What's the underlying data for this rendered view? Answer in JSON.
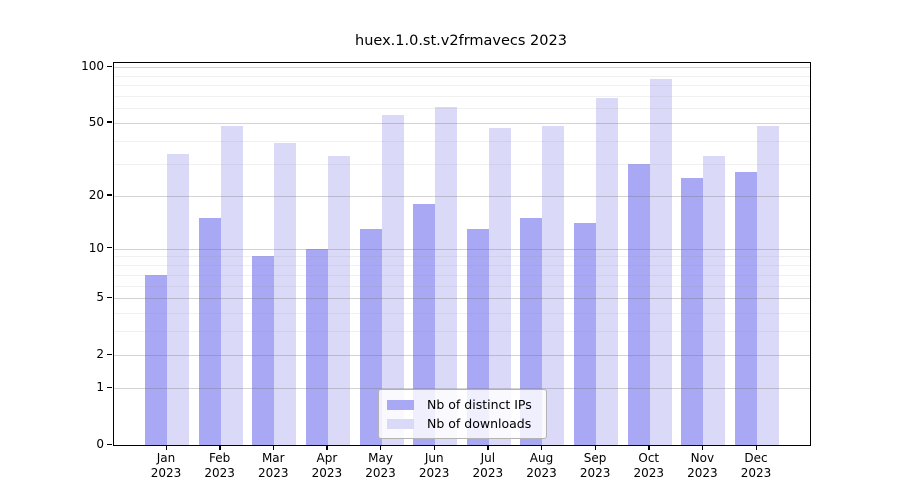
{
  "title": "huex.1.0.st.v2frmavecs 2023",
  "chart_data": {
    "type": "bar",
    "title": "huex.1.0.st.v2frmavecs 2023",
    "categories": [
      "Jan",
      "Feb",
      "Mar",
      "Apr",
      "May",
      "Jun",
      "Jul",
      "Aug",
      "Sep",
      "Oct",
      "Nov",
      "Dec"
    ],
    "year": "2023",
    "series": [
      {
        "name": "Nb of distinct IPs",
        "color": "#a8a8f4",
        "values": [
          7,
          15,
          9,
          10,
          13,
          18,
          13,
          15,
          14,
          30,
          25,
          27
        ]
      },
      {
        "name": "Nb of downloads",
        "color": "#dadaf8",
        "values": [
          34,
          48,
          39,
          33,
          55,
          61,
          47,
          48,
          68,
          86,
          33,
          48
        ]
      }
    ],
    "yscale": "log10(value+1)",
    "ylim": [
      0,
      100
    ],
    "yticks": [
      0,
      1,
      2,
      5,
      10,
      20,
      50,
      100
    ],
    "yticks_minor": [
      3,
      4,
      6,
      7,
      8,
      9,
      30,
      40,
      60,
      70,
      80,
      90
    ],
    "grid": "horizontal",
    "legend_position": "inside-bottom-center",
    "frame_color": "#000000",
    "gridline_major_color": "#d2d2d2",
    "gridline_minor_color": "#ececec"
  }
}
